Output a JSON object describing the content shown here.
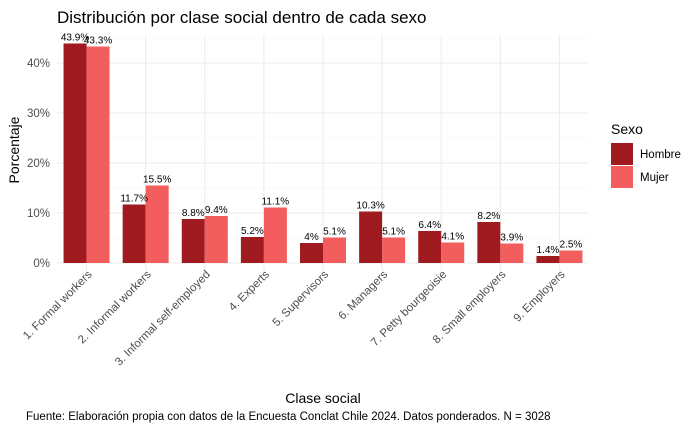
{
  "chart_data": {
    "type": "bar",
    "title": "Distribución por clase social dentro de cada sexo",
    "xlabel": "Clase social",
    "ylabel": "Porcentaje",
    "caption": "Fuente: Elaboración propia con datos de la Encuesta Conclat Chile 2024. Datos ponderados. N = 3028",
    "categories": [
      "1. Formal workers",
      "2. Informal workers",
      "3. Informal self-employed",
      "4. Experts",
      "5. Supervisors",
      "6. Managers",
      "7. Petty bourgeoisie",
      "8. Small employers",
      "9. Employers"
    ],
    "series": [
      {
        "name": "Hombre",
        "color": "#A01B1F",
        "values": [
          43.9,
          11.7,
          8.8,
          5.2,
          4.0,
          10.3,
          6.4,
          8.2,
          1.4
        ],
        "labels": [
          "43.9%",
          "11.7%",
          "8.8%",
          "5.2%",
          "4%",
          "10.3%",
          "6.4%",
          "8.2%",
          "1.4%"
        ]
      },
      {
        "name": "Mujer",
        "color": "#F25E5E",
        "values": [
          43.3,
          15.5,
          9.4,
          11.1,
          5.1,
          5.1,
          4.1,
          3.9,
          2.5
        ],
        "labels": [
          "43.3%",
          "15.5%",
          "9.4%",
          "11.1%",
          "5.1%",
          "5.1%",
          "4.1%",
          "3.9%",
          "2.5%"
        ]
      }
    ],
    "ylim": [
      0,
      45
    ],
    "yticks": [
      0,
      10,
      20,
      30,
      40
    ],
    "ytick_labels": [
      "0%",
      "10%",
      "20%",
      "30%",
      "40%"
    ],
    "grid": true,
    "legend": {
      "title": "Sexo",
      "position": "right"
    }
  }
}
